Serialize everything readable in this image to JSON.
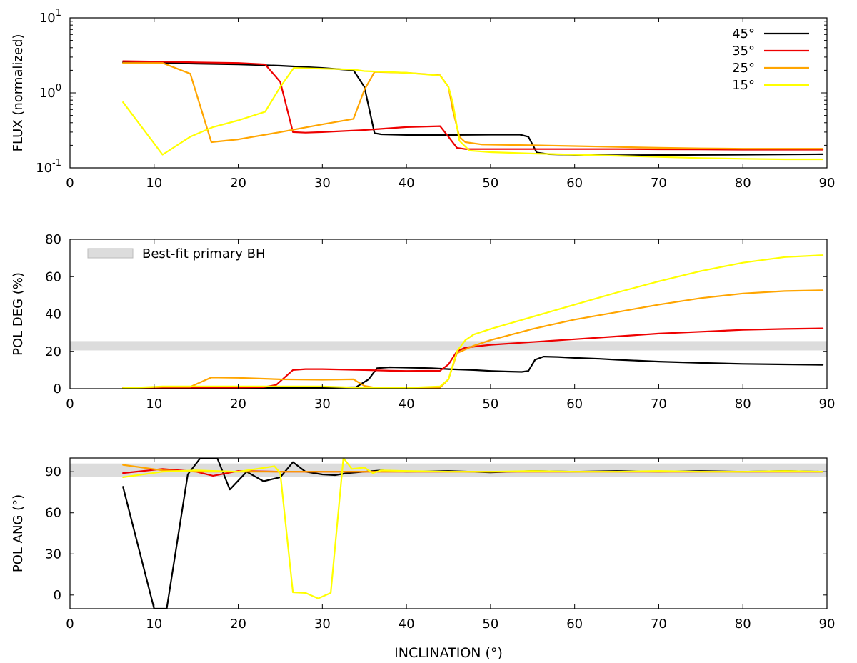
{
  "figure": {
    "xlabel": "INCLINATION (°)"
  },
  "colors": {
    "45": "#000000",
    "35": "#ee0000",
    "25": "#ffa500",
    "15": "#ffff00",
    "band": "#dcdcdc"
  },
  "chart_data": [
    {
      "type": "line",
      "name": "flux",
      "ylabel": "FLUX (normalized)",
      "yscale": "log",
      "xlim": [
        0,
        90
      ],
      "ylim": [
        0.1,
        10
      ],
      "xticks": [
        0,
        10,
        20,
        30,
        40,
        50,
        60,
        70,
        80,
        90
      ],
      "ytick_labels": [
        {
          "value": 10,
          "base": "10",
          "exp": "1"
        },
        {
          "value": 1,
          "base": "10",
          "exp": "0"
        },
        {
          "value": 0.1,
          "base": "10",
          "exp": "-1"
        }
      ],
      "legend": {
        "position": "top-right",
        "entries": [
          {
            "label": "45°",
            "color": "#000000"
          },
          {
            "label": "35°",
            "color": "#ee0000"
          },
          {
            "label": "25°",
            "color": "#ffa500"
          },
          {
            "label": "15°",
            "color": "#ffff00"
          }
        ]
      },
      "series": [
        {
          "name": "45°",
          "color": "#000000",
          "x": [
            6.3,
            11,
            15,
            20,
            25,
            30,
            33.7,
            35,
            36.2,
            37,
            40,
            45,
            50,
            53.5,
            54.5,
            55.5,
            57,
            60,
            65,
            70,
            75,
            80,
            85,
            89.5
          ],
          "y": [
            2.55,
            2.5,
            2.45,
            2.4,
            2.3,
            2.15,
            2.0,
            1.2,
            0.29,
            0.28,
            0.275,
            0.275,
            0.277,
            0.277,
            0.26,
            0.16,
            0.152,
            0.149,
            0.147,
            0.148,
            0.149,
            0.15,
            0.151,
            0.152
          ]
        },
        {
          "name": "35°",
          "color": "#ee0000",
          "x": [
            6.3,
            11,
            15,
            20,
            23.2,
            25,
            26.5,
            28,
            30,
            35,
            40,
            44,
            45,
            46,
            47,
            50,
            55,
            60,
            65,
            70,
            75,
            80,
            85,
            89.5
          ],
          "y": [
            2.65,
            2.6,
            2.55,
            2.5,
            2.4,
            1.4,
            0.3,
            0.295,
            0.3,
            0.32,
            0.35,
            0.36,
            0.26,
            0.185,
            0.178,
            0.178,
            0.178,
            0.178,
            0.178,
            0.177,
            0.176,
            0.175,
            0.175,
            0.175
          ]
        },
        {
          "name": "25°",
          "color": "#ffa500",
          "x": [
            6.3,
            11,
            14.3,
            16.8,
            20,
            25,
            30,
            33.7,
            35,
            36.2,
            40,
            44,
            45,
            45.5,
            46.3,
            47,
            49,
            55,
            60,
            65,
            70,
            75,
            80,
            85,
            89.5
          ],
          "y": [
            2.5,
            2.5,
            1.8,
            0.22,
            0.24,
            0.3,
            0.38,
            0.45,
            1.1,
            1.9,
            1.85,
            1.72,
            1.2,
            0.6,
            0.26,
            0.22,
            0.205,
            0.2,
            0.195,
            0.19,
            0.185,
            0.182,
            0.18,
            0.18,
            0.18
          ]
        },
        {
          "name": "15°",
          "color": "#ffff00",
          "x": [
            6.3,
            11,
            14.3,
            17,
            20,
            23.2,
            25,
            26.6,
            30,
            33.7,
            35,
            40,
            44,
            45,
            45.5,
            46.3,
            47.5,
            50,
            55,
            60,
            65,
            70,
            75,
            80,
            85,
            89.5
          ],
          "y": [
            0.75,
            0.15,
            0.26,
            0.35,
            0.43,
            0.56,
            1.2,
            2.15,
            2.1,
            2.05,
            1.95,
            1.85,
            1.7,
            1.2,
            0.75,
            0.23,
            0.17,
            0.162,
            0.155,
            0.15,
            0.145,
            0.14,
            0.135,
            0.132,
            0.13,
            0.13
          ]
        }
      ]
    },
    {
      "type": "line",
      "name": "pol-deg",
      "ylabel": "POL DEG (%)",
      "yscale": "linear",
      "xlim": [
        0,
        90
      ],
      "ylim": [
        0,
        80
      ],
      "xticks": [
        0,
        10,
        20,
        30,
        40,
        50,
        60,
        70,
        80,
        90
      ],
      "yticks": [
        0,
        20,
        40,
        60,
        80
      ],
      "band": {
        "y0": 20.5,
        "y1": 25.5,
        "label": "Best-fit primary BH"
      },
      "legend": {
        "position": "top-left",
        "entries": [
          {
            "label": "Best-fit primary BH",
            "color": "#dcdcdc"
          }
        ]
      },
      "series": [
        {
          "name": "45°",
          "color": "#000000",
          "x": [
            6.3,
            11,
            15,
            20,
            25,
            30,
            34,
            35.5,
            36.5,
            38,
            40,
            43,
            45,
            48,
            50,
            52,
            53.7,
            54.5,
            55.3,
            56.3,
            58,
            60,
            63,
            65,
            70,
            75,
            80,
            85,
            89.5
          ],
          "y": [
            0.3,
            0.3,
            0.3,
            0.3,
            0.4,
            0.5,
            0.8,
            5,
            11,
            11.5,
            11.3,
            11,
            10.5,
            10,
            9.5,
            9.2,
            9.0,
            9.5,
            15.5,
            17.2,
            17,
            16.5,
            16,
            15.5,
            14.5,
            13.8,
            13.3,
            13,
            12.8
          ]
        },
        {
          "name": "35°",
          "color": "#ee0000",
          "x": [
            6.3,
            11,
            15,
            20,
            23,
            24.5,
            26.5,
            28,
            30,
            35,
            38,
            40,
            44,
            45,
            46,
            47,
            50,
            55,
            60,
            65,
            70,
            75,
            80,
            85,
            89.5
          ],
          "y": [
            0.3,
            0.5,
            0.5,
            0.6,
            0.8,
            2,
            10,
            10.5,
            10.5,
            10,
            9.6,
            9.5,
            9.6,
            13,
            20,
            22,
            23.5,
            25,
            26.5,
            28,
            29.5,
            30.5,
            31.5,
            32,
            32.3
          ]
        },
        {
          "name": "25°",
          "color": "#ffa500",
          "x": [
            6.3,
            11,
            14.3,
            16.8,
            20,
            25,
            30,
            33.7,
            35,
            36.2,
            40,
            44,
            45,
            46,
            48,
            50,
            55,
            60,
            65,
            70,
            75,
            80,
            85,
            89.5
          ],
          "y": [
            0.3,
            1,
            1,
            6,
            5.8,
            5,
            4.8,
            5,
            1.5,
            0.6,
            0.6,
            0.6,
            5,
            19,
            23,
            26,
            32,
            37,
            41,
            45,
            48.5,
            51,
            52.3,
            52.7
          ]
        },
        {
          "name": "15°",
          "color": "#ffff00",
          "x": [
            6.3,
            11,
            15,
            20,
            25,
            30,
            35,
            40,
            44,
            45,
            46,
            47,
            48,
            50,
            55,
            60,
            65,
            70,
            75,
            80,
            85,
            89.5
          ],
          "y": [
            0.3,
            1.2,
            1.2,
            1.2,
            1.2,
            1.2,
            0.5,
            0.5,
            1.2,
            5,
            20,
            26,
            29,
            32,
            38.5,
            45,
            51.5,
            57.5,
            63,
            67.5,
            70.5,
            71.5
          ]
        }
      ]
    },
    {
      "type": "line",
      "name": "pol-ang",
      "ylabel": "POL ANG (°)",
      "yscale": "linear",
      "xlim": [
        0,
        90
      ],
      "ylim": [
        -10,
        100
      ],
      "xticks": [
        0,
        10,
        20,
        30,
        40,
        50,
        60,
        70,
        80,
        90
      ],
      "yticks": [
        0,
        30,
        60,
        90
      ],
      "band": {
        "y0": 86,
        "y1": 96
      },
      "series": [
        {
          "name": "45°",
          "color": "#000000",
          "x": [
            6.3,
            10,
            11.5,
            14,
            15.5,
            17.5,
            19,
            21,
            23,
            25,
            26.5,
            28,
            30,
            31.5,
            33,
            35,
            37,
            40,
            45,
            50,
            55,
            60,
            65,
            70,
            75,
            80,
            85,
            89.5
          ],
          "y": [
            79,
            -10,
            -10,
            88,
            100,
            100,
            77,
            90,
            83,
            86,
            97,
            90,
            88,
            87.5,
            89,
            90,
            91,
            90,
            90.5,
            89.5,
            90.5,
            90,
            90.5,
            90,
            90.5,
            90,
            90.5,
            90
          ]
        },
        {
          "name": "35°",
          "color": "#ee0000",
          "x": [
            6.3,
            11,
            15,
            17,
            20,
            25,
            30,
            35,
            40,
            50,
            60,
            70,
            80,
            89.5
          ],
          "y": [
            89,
            92,
            90,
            87,
            90.5,
            90,
            90,
            90,
            90,
            90,
            90,
            90,
            90,
            90
          ]
        },
        {
          "name": "25°",
          "color": "#ffa500",
          "x": [
            6.3,
            11,
            15,
            20,
            25,
            30,
            35,
            40,
            50,
            60,
            70,
            80,
            89.5
          ],
          "y": [
            95,
            91,
            90,
            90,
            90,
            90,
            90,
            90,
            90,
            90,
            90,
            90,
            90
          ]
        },
        {
          "name": "15°",
          "color": "#ffff00",
          "x": [
            6.3,
            11,
            15,
            20,
            24.3,
            25,
            26.5,
            28,
            29.5,
            31,
            32.5,
            33.5,
            35,
            36,
            37,
            40,
            45,
            50,
            55,
            60,
            65,
            70,
            75,
            80,
            85,
            89.5
          ],
          "y": [
            86,
            90,
            91,
            90,
            94,
            89,
            2,
            1.5,
            -2.5,
            1.5,
            100,
            92,
            93,
            89,
            91,
            90.5,
            90,
            90,
            90.5,
            90,
            90,
            90.5,
            90,
            90,
            90.5,
            90
          ]
        }
      ]
    }
  ]
}
